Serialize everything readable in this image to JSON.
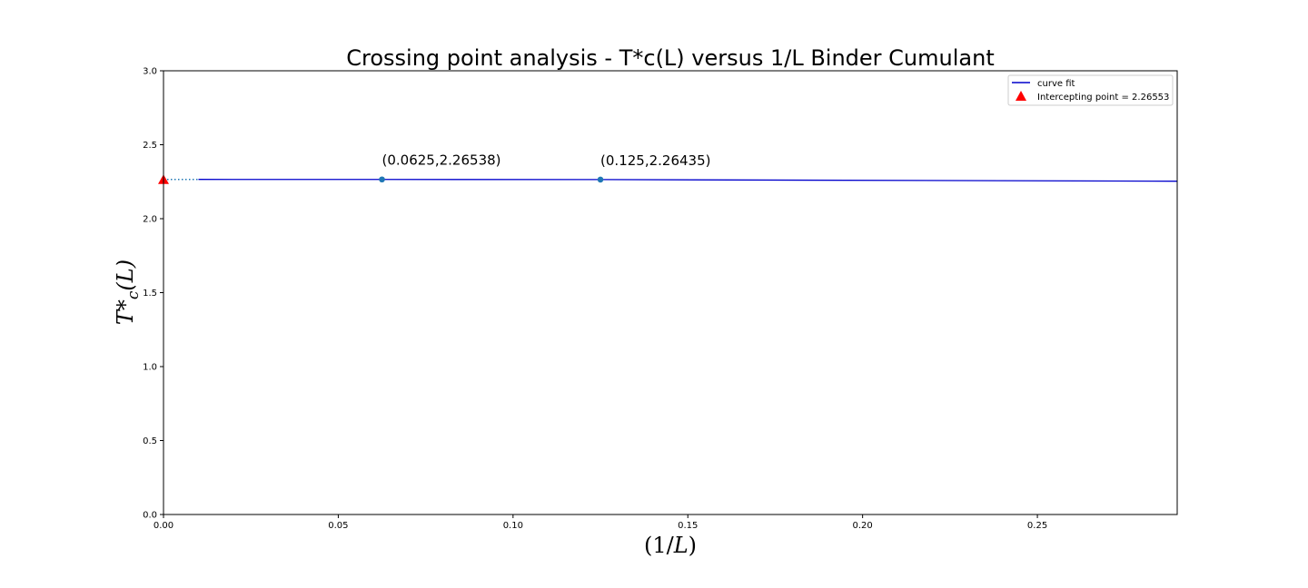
{
  "chart_data": {
    "type": "line",
    "title": "Crossing point analysis - T*c(L) versus 1/L Binder Cumulant",
    "xlabel": "(1/L)",
    "ylabel": "T*_c(L)",
    "xlim": [
      0.0,
      0.29
    ],
    "ylim": [
      0.0,
      3.0
    ],
    "xticks": [
      0.0,
      0.05,
      0.1,
      0.15,
      0.2,
      0.25
    ],
    "xtick_labels": [
      "0.00",
      "0.05",
      "0.10",
      "0.15",
      "0.20",
      "0.25"
    ],
    "yticks": [
      0.0,
      0.5,
      1.0,
      1.5,
      2.0,
      2.5,
      3.0
    ],
    "ytick_labels": [
      "0.0",
      "0.5",
      "1.0",
      "1.5",
      "2.0",
      "2.5",
      "3.0"
    ],
    "grid": false,
    "legend_position": "top-right",
    "curve_fit": {
      "name": "curve fit",
      "color": "#0000cc",
      "x": [
        0.01,
        0.0625,
        0.125,
        0.29
      ],
      "y": [
        2.2656,
        2.26538,
        2.26435,
        2.2535
      ]
    },
    "extrapolation": {
      "color": "#1f77b4",
      "style": "dotted",
      "x": [
        0.0,
        0.01
      ],
      "y": [
        2.26553,
        2.2656
      ]
    },
    "points": {
      "color": "#1f77b4",
      "x": [
        0.0625,
        0.125
      ],
      "y": [
        2.26538,
        2.26435
      ]
    },
    "annotations": [
      {
        "text": "(0.0625,2.26538)",
        "x": 0.0625,
        "y": 2.26538
      },
      {
        "text": "(0.125,2.26435)",
        "x": 0.125,
        "y": 2.26435
      }
    ],
    "intercept": {
      "name": "Intercepting point = 2.26553",
      "color": "#ff0000",
      "marker": "triangle",
      "x": 0.0,
      "y": 2.26553
    }
  }
}
